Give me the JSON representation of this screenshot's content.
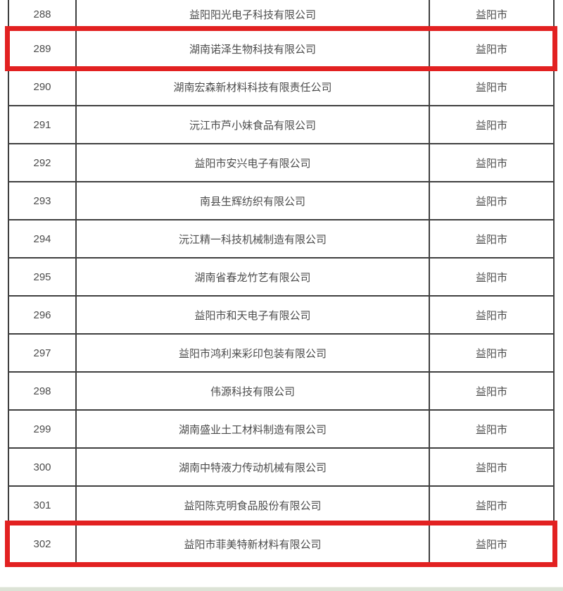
{
  "page": {
    "background": "#ffffff",
    "footer_strip_color": "#dce3d6"
  },
  "table": {
    "border_color": "#3f3f3f",
    "text_color": "#4c4c4c",
    "highlight_border_color": "#e22121",
    "city_common": "益阳市",
    "rows": [
      {
        "no": "288",
        "company": "益阳阳光电子科技有限公司",
        "city": "益阳市",
        "highlighted": false
      },
      {
        "no": "289",
        "company": "湖南诺泽生物科技有限公司",
        "city": "益阳市",
        "highlighted": true
      },
      {
        "no": "290",
        "company": "湖南宏森新材料科技有限责任公司",
        "city": "益阳市",
        "highlighted": false
      },
      {
        "no": "291",
        "company": "沅江市芦小妹食品有限公司",
        "city": "益阳市",
        "highlighted": false
      },
      {
        "no": "292",
        "company": "益阳市安兴电子有限公司",
        "city": "益阳市",
        "highlighted": false
      },
      {
        "no": "293",
        "company": "南县生辉纺织有限公司",
        "city": "益阳市",
        "highlighted": false
      },
      {
        "no": "294",
        "company": "沅江精一科技机械制造有限公司",
        "city": "益阳市",
        "highlighted": false
      },
      {
        "no": "295",
        "company": "湖南省春龙竹艺有限公司",
        "city": "益阳市",
        "highlighted": false
      },
      {
        "no": "296",
        "company": "益阳市和天电子有限公司",
        "city": "益阳市",
        "highlighted": false
      },
      {
        "no": "297",
        "company": "益阳市鸿利来彩印包装有限公司",
        "city": "益阳市",
        "highlighted": false
      },
      {
        "no": "298",
        "company": "伟源科技有限公司",
        "city": "益阳市",
        "highlighted": false
      },
      {
        "no": "299",
        "company": "湖南盛业土工材料制造有限公司",
        "city": "益阳市",
        "highlighted": false
      },
      {
        "no": "300",
        "company": "湖南中特液力传动机械有限公司",
        "city": "益阳市",
        "highlighted": false
      },
      {
        "no": "301",
        "company": "益阳陈克明食品股份有限公司",
        "city": "益阳市",
        "highlighted": false
      },
      {
        "no": "302",
        "company": "益阳市菲美特新材料有限公司",
        "city": "益阳市",
        "highlighted": true
      }
    ]
  }
}
